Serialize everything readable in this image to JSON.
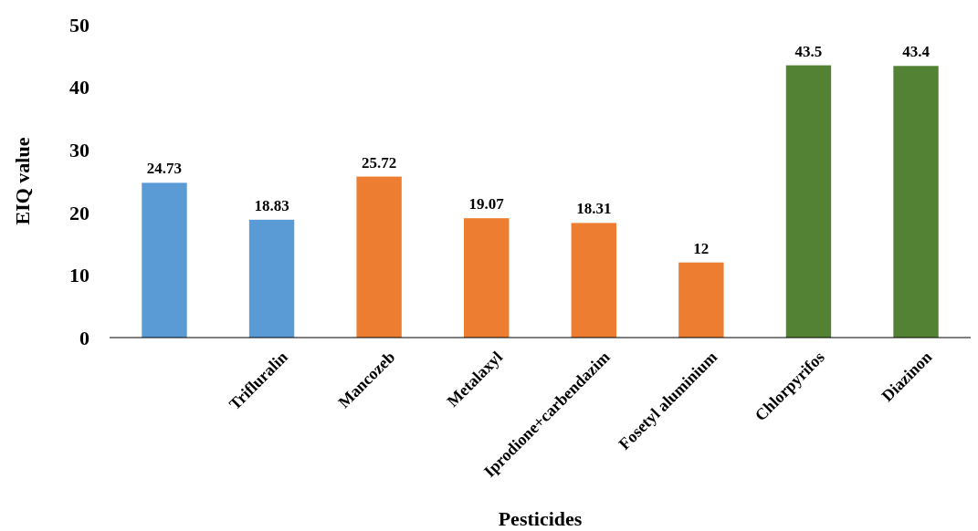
{
  "chart_data": {
    "type": "bar",
    "xlabel": "Pesticides",
    "ylabel": "EIQ value",
    "categories": [
      null,
      "Trifluralin",
      "Mancozeb",
      "Metalaxyl",
      "Iprodione+carbendazim",
      "Fosetyl aluminium",
      "Chlorpyrifos",
      "Diazinon"
    ],
    "values": [
      24.73,
      18.83,
      25.72,
      19.07,
      18.31,
      12,
      43.5,
      43.4
    ],
    "colors": [
      "#5b9bd5",
      "#5b9bd5",
      "#ed7d31",
      "#ed7d31",
      "#ed7d31",
      "#ed7d31",
      "#548235",
      "#548235"
    ],
    "ylim": [
      0,
      50
    ],
    "yticks": [
      0,
      10,
      20,
      30,
      40,
      50
    ],
    "data_labels": true,
    "grid": false
  }
}
